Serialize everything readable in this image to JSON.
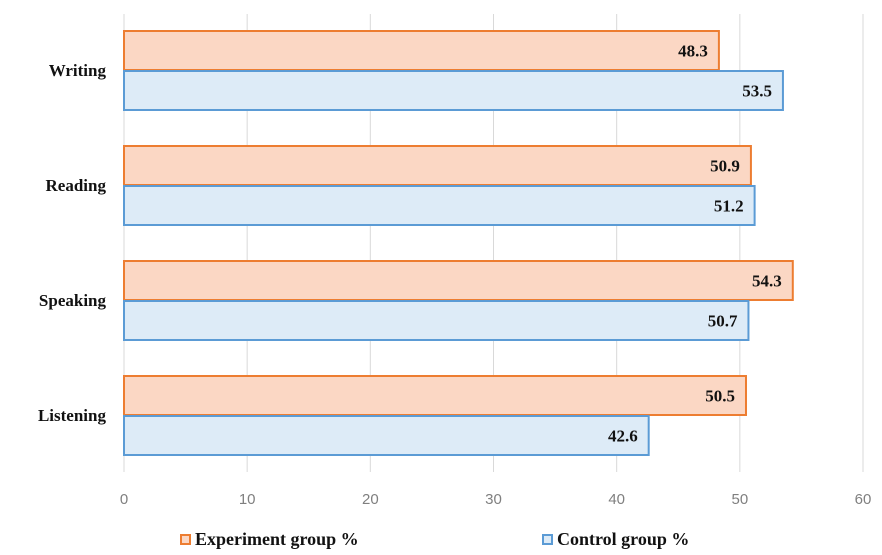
{
  "chart_data": {
    "type": "bar",
    "orientation": "horizontal",
    "categories": [
      "Writing",
      "Reading",
      "Speaking",
      "Listening"
    ],
    "series": [
      {
        "name": "Experiment group %",
        "values": [
          48.3,
          50.9,
          54.3,
          50.5
        ],
        "fill": "#FBD7C4",
        "stroke": "#ED7D31"
      },
      {
        "name": "Control group %",
        "values": [
          53.5,
          51.2,
          50.7,
          42.6
        ],
        "fill": "#DDEBF7",
        "stroke": "#5B9BD5"
      }
    ],
    "xlim": [
      0,
      60
    ],
    "xticks": [
      "0",
      "10",
      "20",
      "30",
      "40",
      "50",
      "60"
    ],
    "grid": true,
    "legend_position": "bottom",
    "data_labels": true
  }
}
